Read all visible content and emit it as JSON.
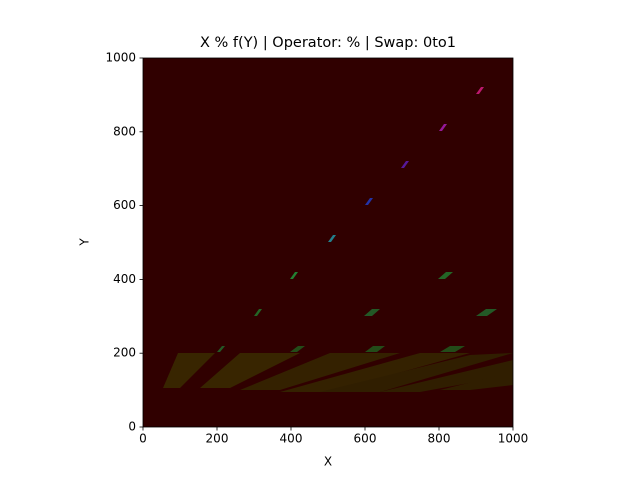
{
  "chart_data": {
    "type": "image",
    "title": "X % f(Y) | Operator: % | Swap: 0to1",
    "xlabel": "X",
    "ylabel": "Y",
    "xlim": [
      0,
      1000
    ],
    "ylim": [
      0,
      1000
    ],
    "xticks": [
      0,
      200,
      400,
      600,
      800,
      1000
    ],
    "yticks": [
      0,
      200,
      400,
      600,
      800,
      1000
    ],
    "background": "#300000"
  }
}
